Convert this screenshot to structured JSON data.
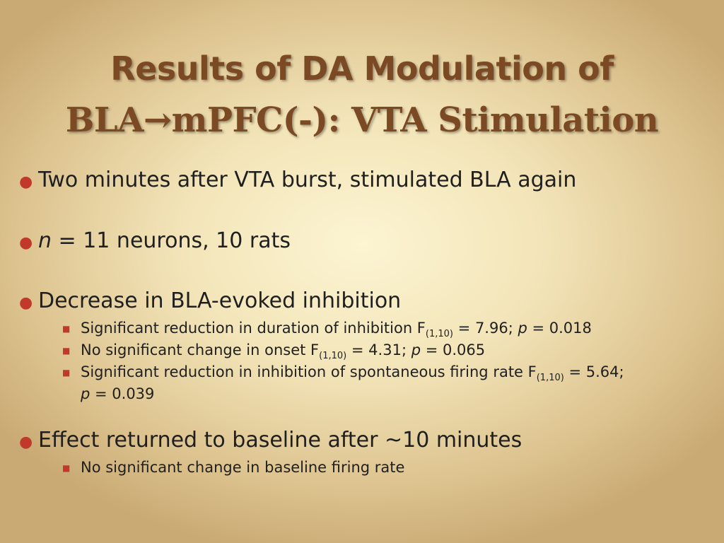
{
  "title": {
    "line1": "Results of DA Modulation of",
    "line2": "BLA→mPFC(-): VTA Stimulation"
  },
  "bullets": [
    {
      "text": "Two minutes after VTA burst, stimulated BLA again"
    },
    {
      "italic_prefix": "n",
      "text": " = 11 neurons, 10 rats"
    },
    {
      "text": "Decrease in BLA-evoked inhibition",
      "sub_items": [
        {
          "pre": "Significant reduction in duration of inhibition F",
          "sub": "(1,10)",
          "mid": " = 7.96; ",
          "ital": "p",
          "post": " = 0.018"
        },
        {
          "pre": "No significant change in onset F",
          "sub": "(1,10)",
          "mid": " = 4.31; ",
          "ital": "p",
          "post": " = 0.065"
        },
        {
          "pre": "Significant reduction in inhibition of spontaneous firing rate F",
          "sub": "(1,10)",
          "mid": " = 5.64;",
          "ital": "p",
          "post": " = 0.039"
        }
      ]
    },
    {
      "text": "Effect returned to baseline after ~10 minutes",
      "sub_items": [
        {
          "text": "No significant change in baseline firing rate"
        }
      ]
    }
  ],
  "colors": {
    "title": "#7b4a24",
    "bullet": "#c0392b",
    "body_text": "#1f1f1f",
    "background_center": "#fcf4d2",
    "background_edge": "#c9aa74"
  },
  "icons": {
    "level1_bullet": "round-bullet",
    "level2_bullet": "square-bullet"
  }
}
